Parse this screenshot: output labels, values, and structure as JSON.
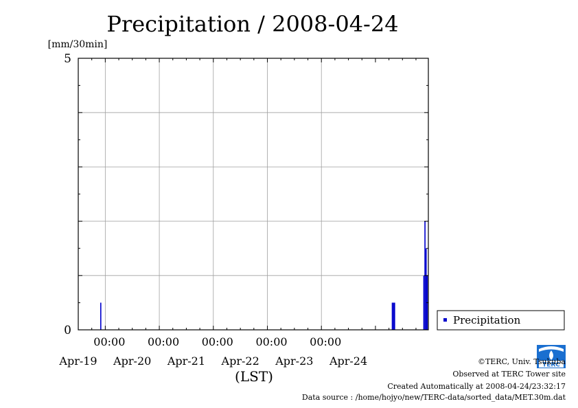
{
  "chart_data": {
    "type": "bar",
    "title": "Precipitation / 2008-04-24",
    "ylabel": "[mm/30min]",
    "xlabel": "(LST)",
    "ylim": [
      0,
      5
    ],
    "y_tick_labels": [
      "0",
      "5"
    ],
    "x_range": [
      "2008-04-18 12:00",
      "2008-04-24 23:30"
    ],
    "x_ticks": [
      {
        "time": "2008-04-19 00:00",
        "label": "00:00",
        "date": "Apr-19"
      },
      {
        "time": "2008-04-20 00:00",
        "label": "00:00",
        "date": "Apr-20"
      },
      {
        "time": "2008-04-21 00:00",
        "label": "00:00",
        "date": "Apr-21"
      },
      {
        "time": "2008-04-22 00:00",
        "label": "00:00",
        "date": "Apr-22"
      },
      {
        "time": "2008-04-23 00:00",
        "label": "00:00",
        "date": "Apr-23"
      }
    ],
    "x_date_labels_extra": [
      "Apr-24"
    ],
    "grid": true,
    "legend": {
      "position": "right",
      "entries": [
        "Precipitation"
      ]
    },
    "series": [
      {
        "name": "Precipitation",
        "color": "#0000cc",
        "points": [
          {
            "x": "2008-04-18 22:00",
            "y": 0.5
          },
          {
            "x": "2008-04-24 07:30",
            "y": 0.5
          },
          {
            "x": "2008-04-24 08:00",
            "y": 0.5
          },
          {
            "x": "2008-04-24 08:30",
            "y": 0.5
          },
          {
            "x": "2008-04-24 21:30",
            "y": 1.0
          },
          {
            "x": "2008-04-24 22:00",
            "y": 2.0
          },
          {
            "x": "2008-04-24 22:30",
            "y": 1.5
          },
          {
            "x": "2008-04-24 23:00",
            "y": 1.0
          }
        ]
      }
    ]
  },
  "credits": {
    "copyright": "©TERC, Univ. Tsukuba",
    "site": "Observed at TERC Tower site",
    "created": "Created Automatically at 2008-04-24/23:32:17",
    "source": "Data source : /home/hojyo/new/TERC-data/sorted_data/MET.30m.dat"
  },
  "logo": {
    "text": "TERC",
    "color": "#1a6fd0"
  }
}
